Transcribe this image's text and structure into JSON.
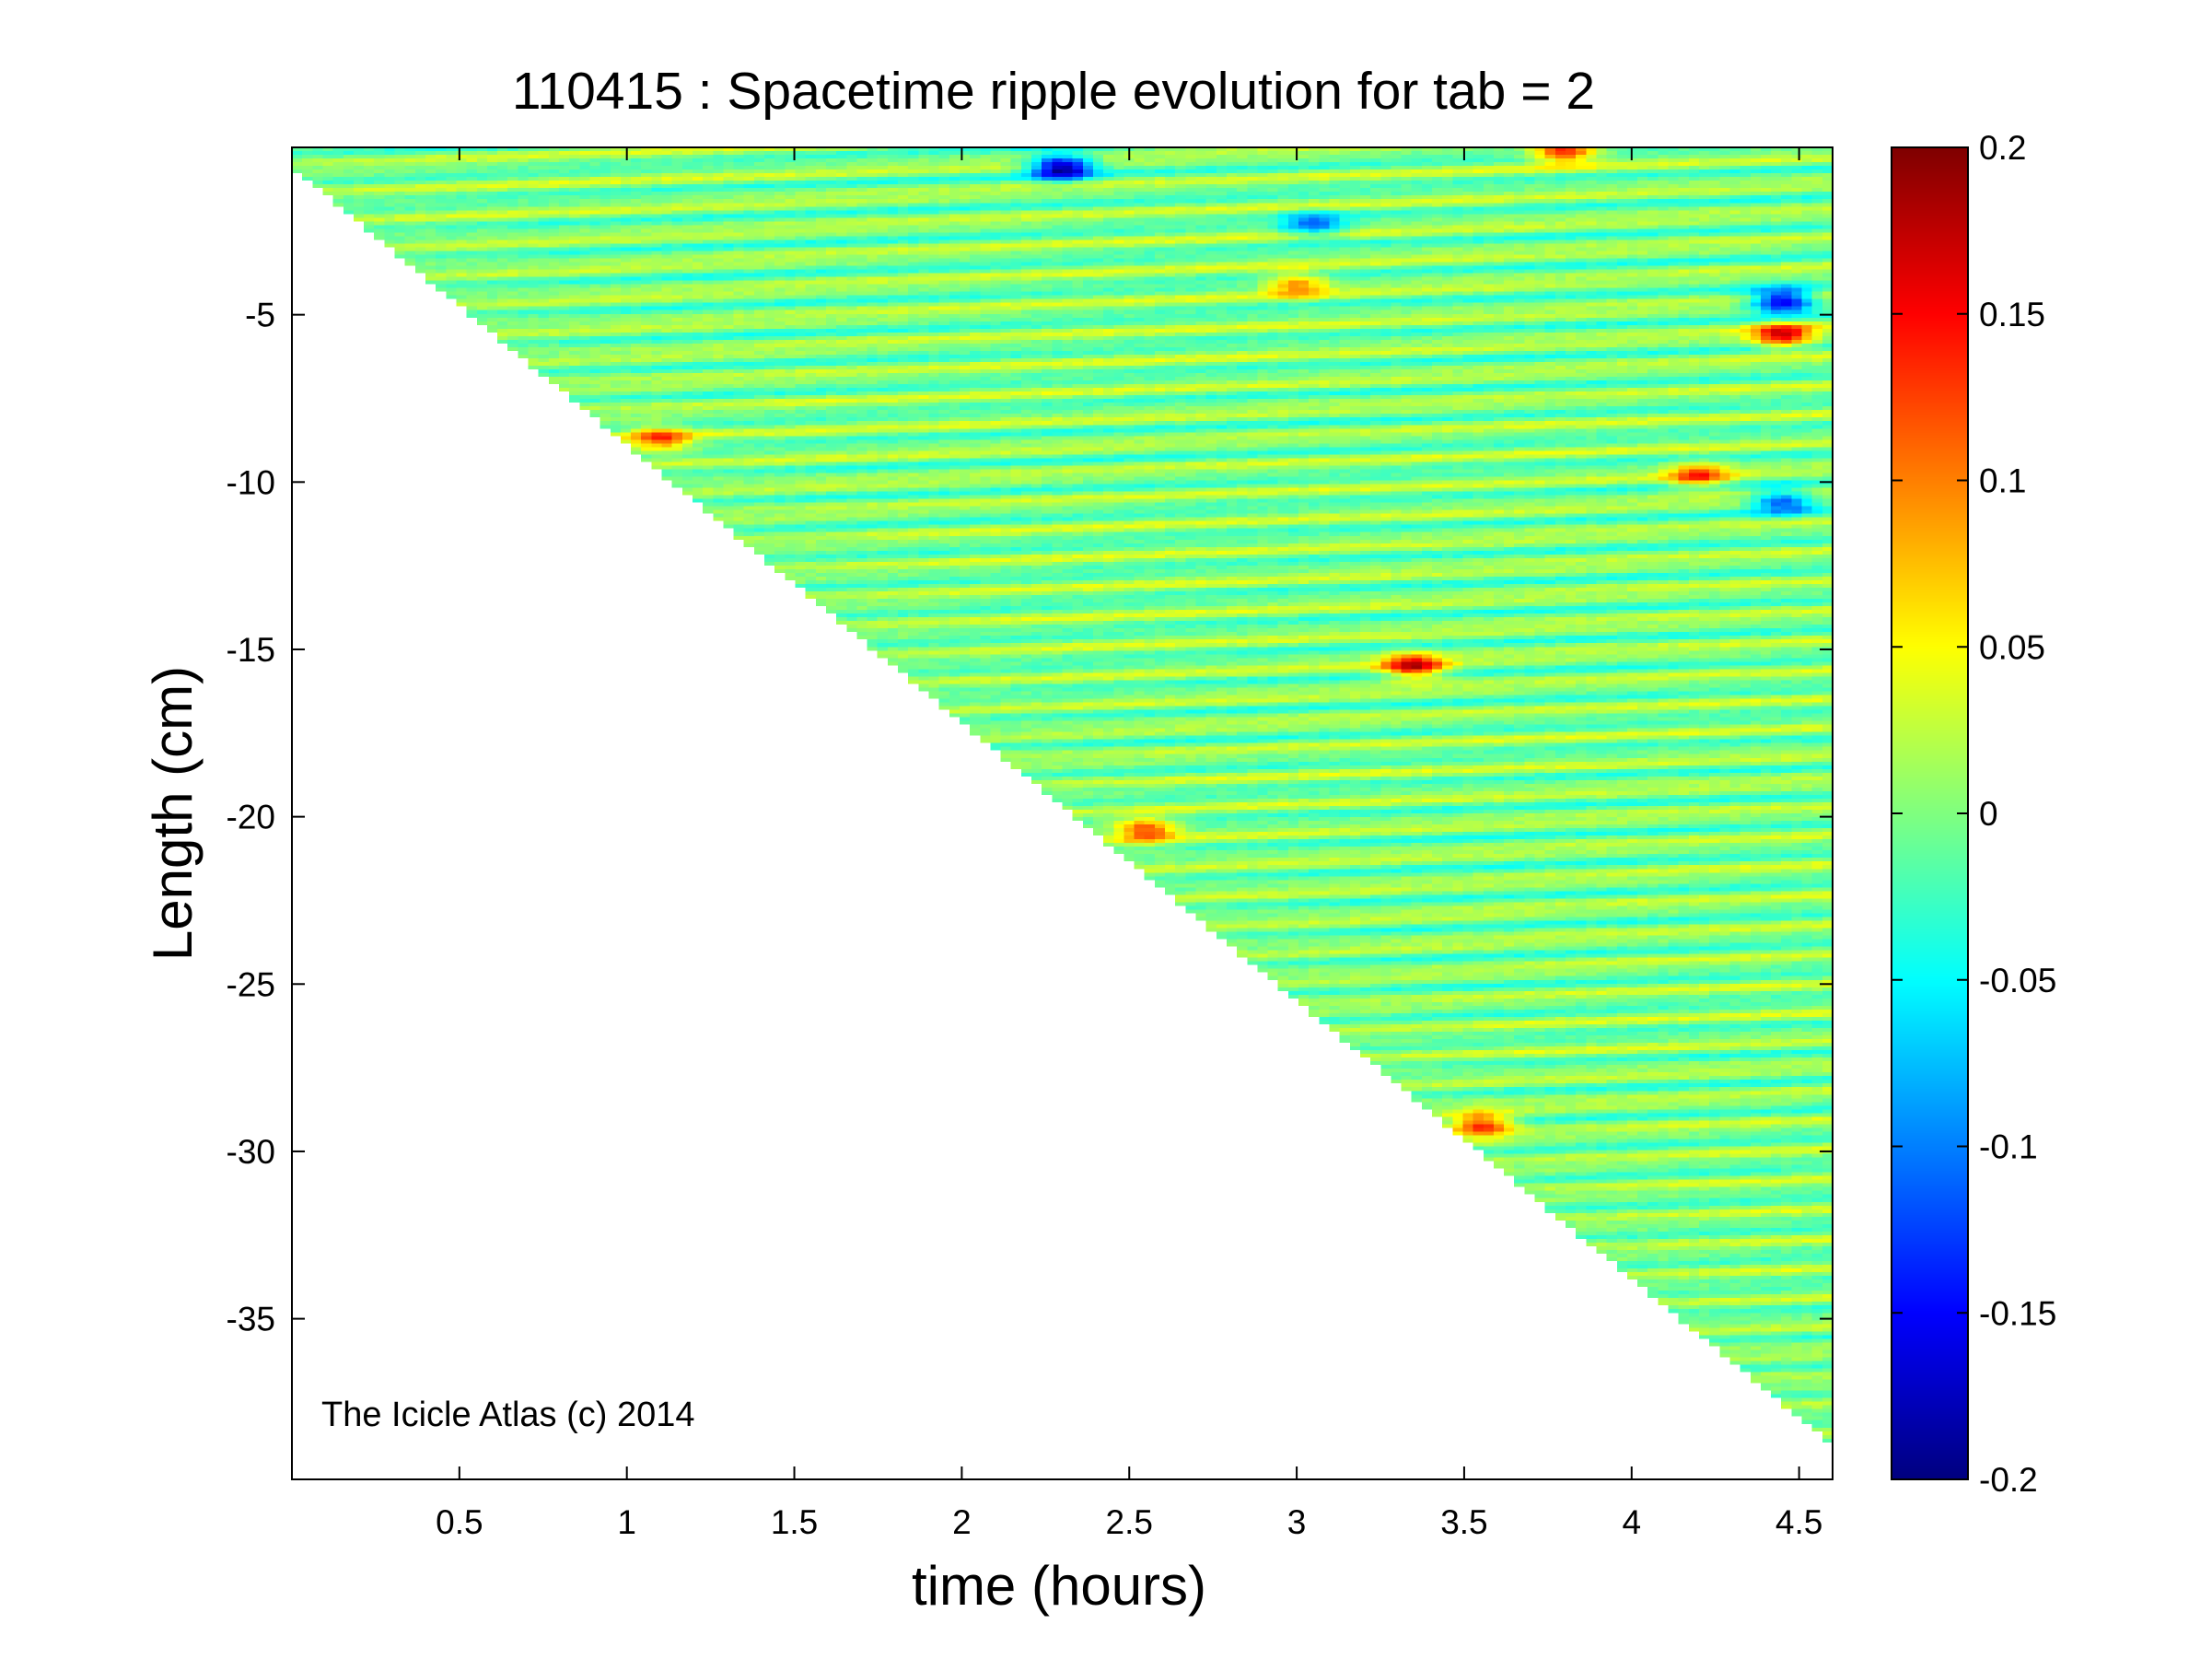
{
  "chart_data": {
    "type": "heatmap",
    "title": "110415 : Spacetime ripple evolution for tab = 2",
    "xlabel": "time (hours)",
    "ylabel": "Length (cm)",
    "xlim": [
      0,
      4.6
    ],
    "ylim": [
      -39.8,
      0
    ],
    "xticks": [
      0.5,
      1,
      1.5,
      2,
      2.5,
      3,
      3.5,
      4,
      4.5
    ],
    "xtick_labels": [
      "0.5",
      "1",
      "1.5",
      "2",
      "2.5",
      "3",
      "3.5",
      "4",
      "4.5"
    ],
    "yticks": [
      -5,
      -10,
      -15,
      -20,
      -25,
      -30,
      -35
    ],
    "ytick_labels": [
      "-5",
      "-10",
      "-15",
      "-20",
      "-25",
      "-30",
      "-35"
    ],
    "colorbar": {
      "colormap": "jet",
      "clim": [
        -0.2,
        0.2
      ],
      "ticks": [
        0.2,
        0.15,
        0.1,
        0.05,
        0,
        -0.05,
        -0.1,
        -0.15,
        -0.2
      ],
      "tick_labels": [
        "0.2",
        "0.15",
        "0.1",
        "0.05",
        "0",
        "-0.05",
        "-0.1",
        "-0.15",
        "-0.2"
      ]
    },
    "data_extent": {
      "description_values": "icicle length grows linearly with time",
      "length_at_start_cm": -0.6,
      "length_at_end_cm": -38.8,
      "end_time_hours": 4.6
    },
    "ripple_features": {
      "ripple_spacing_cm": 0.85,
      "ripple_upward_drift_cm_per_hour": 0.5,
      "strong_events": [
        {
          "t": 2.3,
          "y": -0.6,
          "value": -0.2
        },
        {
          "t": 1.1,
          "y": -8.7,
          "value": 0.12
        },
        {
          "t": 2.55,
          "y": -20.4,
          "value": 0.13
        },
        {
          "t": 3.35,
          "y": -15.5,
          "value": 0.17
        },
        {
          "t": 3.55,
          "y": -29.2,
          "value": 0.14
        },
        {
          "t": 4.45,
          "y": -4.6,
          "value": -0.18
        },
        {
          "t": 4.45,
          "y": -5.6,
          "value": 0.16
        },
        {
          "t": 4.2,
          "y": -9.8,
          "value": 0.12
        },
        {
          "t": 4.45,
          "y": -10.6,
          "value": -0.12
        },
        {
          "t": 3.05,
          "y": -2.3,
          "value": -0.1
        },
        {
          "t": 3.0,
          "y": -4.1,
          "value": 0.1
        },
        {
          "t": 3.8,
          "y": -0.1,
          "value": 0.15
        }
      ]
    },
    "grid": false,
    "legend": "none"
  },
  "annotation": "The Icicle Atlas (c) 2014"
}
